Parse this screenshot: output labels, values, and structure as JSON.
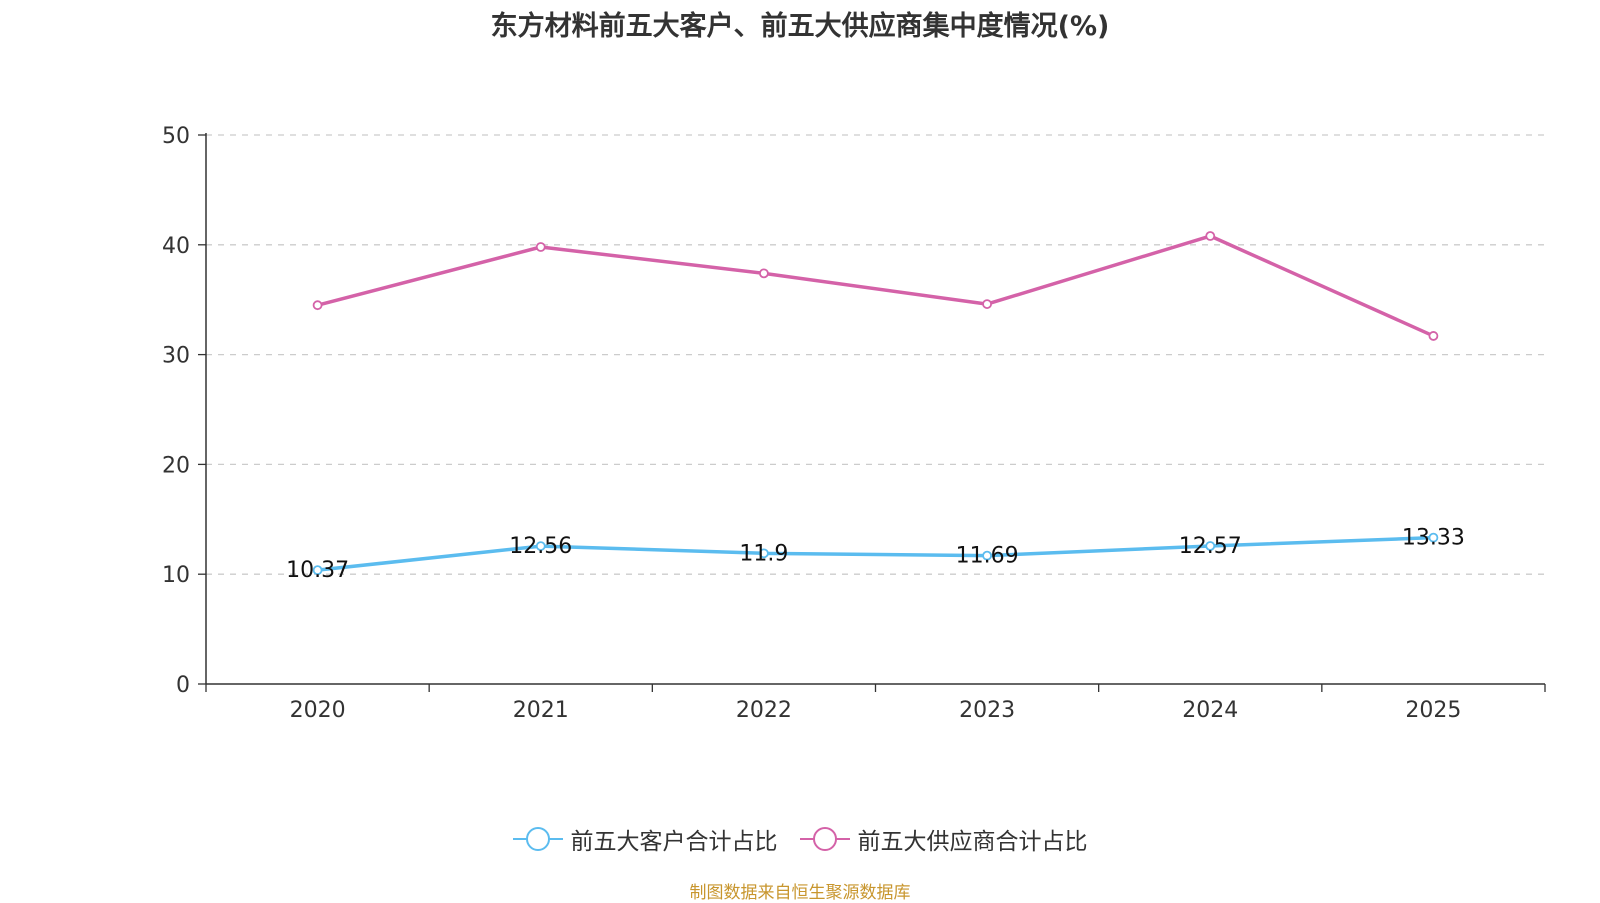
{
  "chart_data": {
    "type": "line",
    "title": "东方材料前五大客户、前五大供应商集中度情况(%)",
    "categories": [
      "2020",
      "2021",
      "2022",
      "2023",
      "2024",
      "2025"
    ],
    "ylim": [
      0,
      50
    ],
    "yticks": [
      0,
      10,
      20,
      30,
      40,
      50
    ],
    "grid": true,
    "legend_position": "bottom",
    "series": [
      {
        "name": "前五大客户合计占比",
        "color": "#5bbcef",
        "values": [
          10.37,
          12.56,
          11.9,
          11.69,
          12.57,
          13.33
        ],
        "labels": [
          "10.37",
          "12.56",
          "11.9",
          "11.69",
          "12.57",
          "13.33"
        ],
        "show_labels": true
      },
      {
        "name": "前五大供应商合计占比",
        "color": "#d462a8",
        "values": [
          34.5,
          39.8,
          37.4,
          34.6,
          40.8,
          31.7
        ],
        "show_labels": false
      }
    ]
  },
  "source_note": "制图数据来自恒生聚源数据库"
}
